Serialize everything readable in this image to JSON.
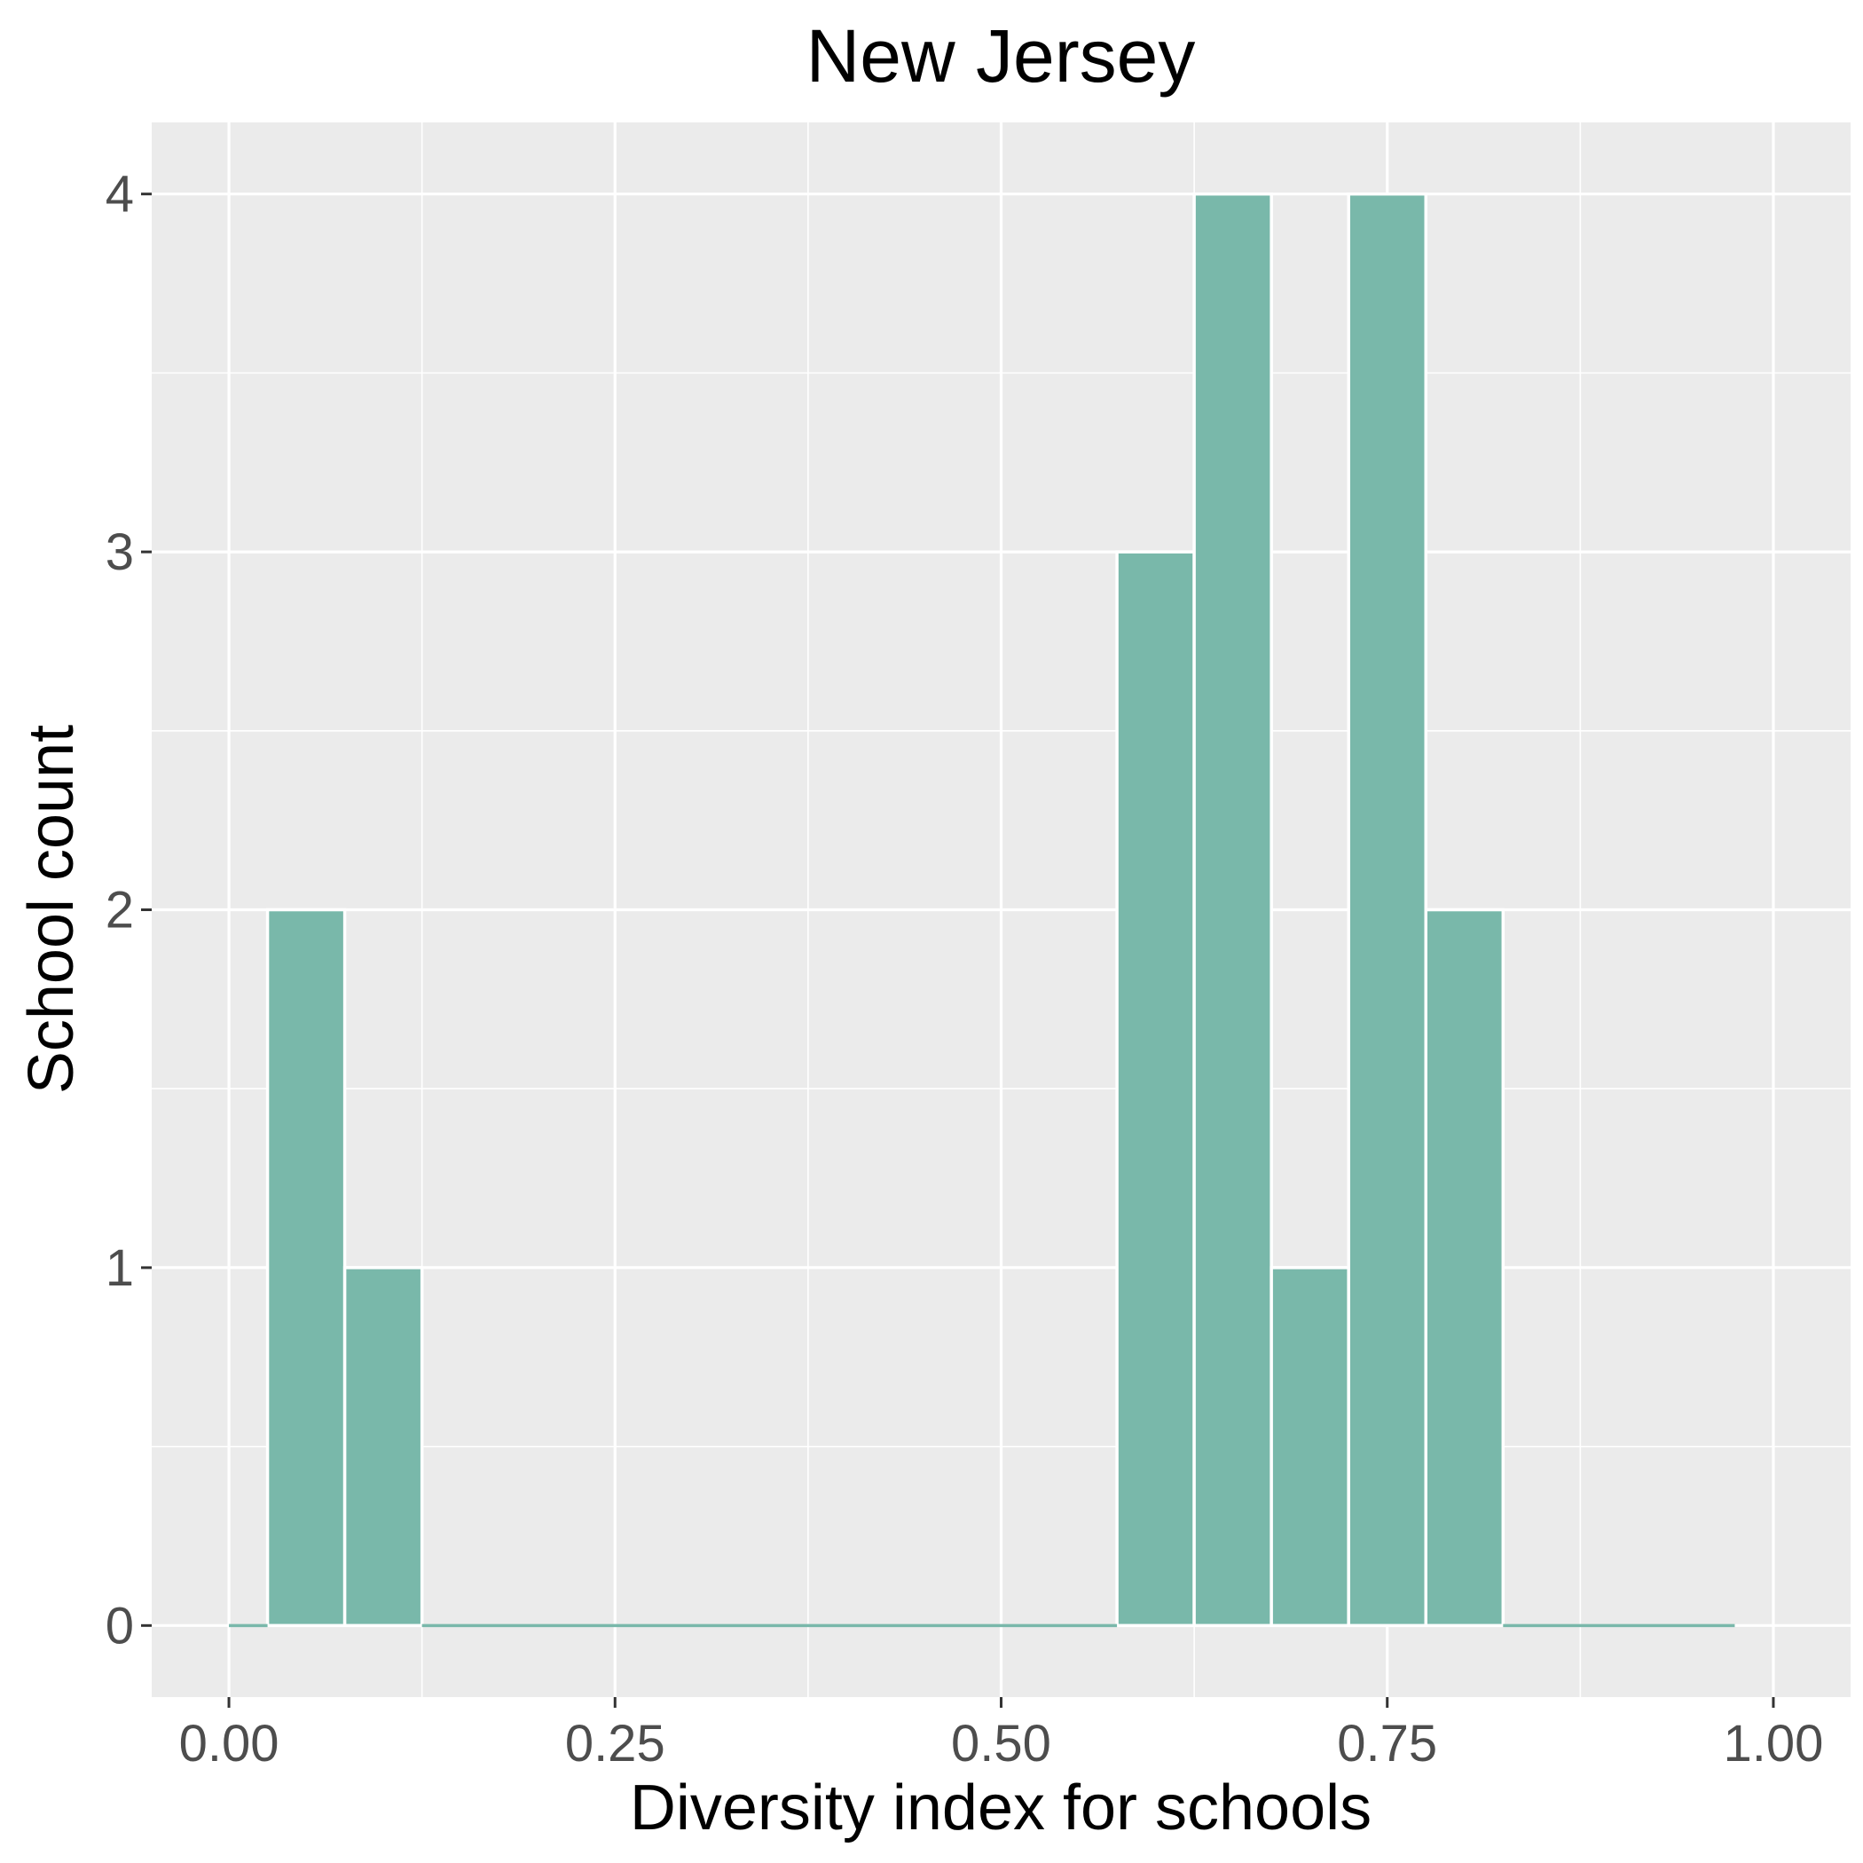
{
  "chart_data": {
    "type": "bar",
    "title": "New Jersey",
    "xlabel": "Diversity index for schools",
    "ylabel": "School count",
    "bin_width": 0.05,
    "bins": [
      {
        "center": 0.05,
        "count": 2
      },
      {
        "center": 0.1,
        "count": 1
      },
      {
        "center": 0.6,
        "count": 3
      },
      {
        "center": 0.65,
        "count": 4
      },
      {
        "center": 0.7,
        "count": 1
      },
      {
        "center": 0.75,
        "count": 4
      },
      {
        "center": 0.8,
        "count": 2
      }
    ],
    "zero_baseline_segments": [
      [
        0.0,
        0.025
      ],
      [
        0.125,
        0.575
      ],
      [
        0.825,
        0.975
      ]
    ],
    "xlim": [
      -0.05,
      1.05
    ],
    "ylim": [
      -0.2,
      4.2
    ],
    "x_ticks": [
      0.0,
      0.25,
      0.5,
      0.75,
      1.0
    ],
    "x_tick_labels": [
      "0.00",
      "0.25",
      "0.50",
      "0.75",
      "1.00"
    ],
    "y_ticks": [
      0,
      1,
      2,
      3,
      4
    ],
    "y_tick_labels": [
      "0",
      "1",
      "2",
      "3",
      "4"
    ],
    "grid": true,
    "colors": {
      "panel": "#ebebeb",
      "grid": "#ffffff",
      "bar_fill": "#79b8aa",
      "tick": "#333333"
    }
  }
}
